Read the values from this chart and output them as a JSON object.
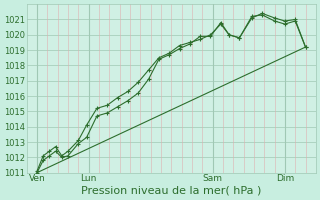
{
  "bg_color": "#c8eee0",
  "plot_bg_color": "#d0f0e4",
  "grid_major_color": "#a0c8b4",
  "grid_minor_color": "#e0b0b0",
  "line_color": "#2d6e2d",
  "xlabel": "Pression niveau de la mer( hPa )",
  "xlabel_fontsize": 8,
  "ylim": [
    1011,
    1022
  ],
  "xlim": [
    0,
    14
  ],
  "yticks": [
    1011,
    1012,
    1013,
    1014,
    1015,
    1016,
    1017,
    1018,
    1019,
    1020,
    1021
  ],
  "ytick_fontsize": 6,
  "xtick_labels": [
    "Ven",
    "Lun",
    "Sam",
    "Dim"
  ],
  "xtick_positions": [
    0.5,
    3.0,
    9.0,
    12.5
  ],
  "vline_positions": [
    0.5,
    3.0,
    9.0,
    12.5
  ],
  "minor_vlines": [
    1.0,
    1.5,
    2.0,
    2.5,
    3.5,
    4.0,
    4.5,
    5.0,
    5.5,
    6.0,
    6.5,
    7.0,
    7.5,
    8.0,
    8.5,
    9.5,
    10.0,
    10.5,
    11.0,
    11.5,
    12.0,
    13.0,
    13.5
  ],
  "series1_x": [
    0.5,
    0.8,
    1.1,
    1.4,
    1.7,
    2.0,
    2.5,
    2.9,
    3.4,
    3.9,
    4.4,
    4.9,
    5.4,
    5.9,
    6.4,
    6.9,
    7.4,
    7.9,
    8.4,
    8.9,
    9.4,
    9.8,
    10.3,
    10.9,
    11.4,
    12.0,
    12.5,
    13.0,
    13.5
  ],
  "series1_y": [
    1011.0,
    1011.8,
    1012.1,
    1012.4,
    1012.0,
    1012.1,
    1012.9,
    1013.3,
    1014.7,
    1014.9,
    1015.3,
    1015.7,
    1016.2,
    1017.1,
    1018.4,
    1018.7,
    1019.1,
    1019.4,
    1019.9,
    1019.9,
    1020.8,
    1020.0,
    1019.8,
    1021.1,
    1021.4,
    1021.1,
    1020.9,
    1021.0,
    1019.2
  ],
  "series2_x": [
    0.5,
    0.8,
    1.1,
    1.4,
    1.7,
    2.0,
    2.5,
    2.9,
    3.4,
    3.9,
    4.4,
    4.9,
    5.4,
    5.9,
    6.4,
    6.9,
    7.4,
    7.9,
    8.4,
    8.9,
    9.4,
    9.8,
    10.3,
    10.9,
    11.4,
    12.0,
    12.5,
    13.0,
    13.5
  ],
  "series2_y": [
    1011.1,
    1012.1,
    1012.4,
    1012.7,
    1012.1,
    1012.4,
    1013.1,
    1014.1,
    1015.2,
    1015.4,
    1015.9,
    1016.3,
    1016.9,
    1017.7,
    1018.5,
    1018.8,
    1019.3,
    1019.5,
    1019.7,
    1020.0,
    1020.7,
    1020.0,
    1019.8,
    1021.2,
    1021.3,
    1020.9,
    1020.7,
    1020.9,
    1019.2
  ],
  "series3_x": [
    0.5,
    13.5
  ],
  "series3_y": [
    1011.0,
    1019.2
  ]
}
